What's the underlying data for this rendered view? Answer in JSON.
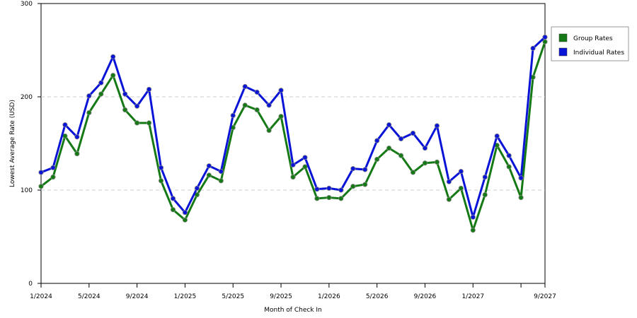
{
  "chart_data": {
    "type": "line",
    "x_label": "Month of Check In",
    "y_label": "Lowest Average Rate (USD)",
    "categories": [
      "1/2024",
      null,
      null,
      null,
      "5/2024",
      null,
      null,
      null,
      "9/2024",
      null,
      null,
      null,
      "1/2025",
      null,
      null,
      null,
      "5/2025",
      null,
      null,
      null,
      "9/2025",
      null,
      null,
      null,
      "1/2026",
      null,
      null,
      null,
      "5/2026",
      null,
      null,
      null,
      "9/2026",
      null,
      null,
      null,
      "1/2027",
      null,
      null,
      null,
      null,
      null,
      "9/2027"
    ],
    "series": [
      {
        "name": "Group Rates",
        "color": "#157a15",
        "values": [
          104,
          114,
          158,
          139,
          183,
          203,
          223,
          186,
          172,
          172,
          110,
          79,
          68,
          95,
          116,
          110,
          167,
          191,
          186,
          164,
          179,
          114,
          125,
          91,
          92,
          91,
          104,
          106,
          133,
          145,
          137,
          119,
          129,
          130,
          90,
          102,
          57,
          95,
          148,
          125,
          92,
          221,
          259
        ]
      },
      {
        "name": "Individual Rates",
        "color": "#0a14d6",
        "values": [
          119,
          124,
          170,
          157,
          201,
          215,
          243,
          203,
          190,
          208,
          124,
          91,
          76,
          102,
          126,
          120,
          180,
          211,
          205,
          191,
          207,
          127,
          135,
          101,
          102,
          100,
          123,
          122,
          153,
          170,
          155,
          161,
          145,
          169,
          109,
          120,
          71,
          114,
          158,
          137,
          113,
          252,
          264
        ]
      }
    ],
    "ylim": [
      0,
      300
    ],
    "yticks": [
      0,
      100,
      200,
      300
    ],
    "grid": true,
    "legend": "right"
  }
}
